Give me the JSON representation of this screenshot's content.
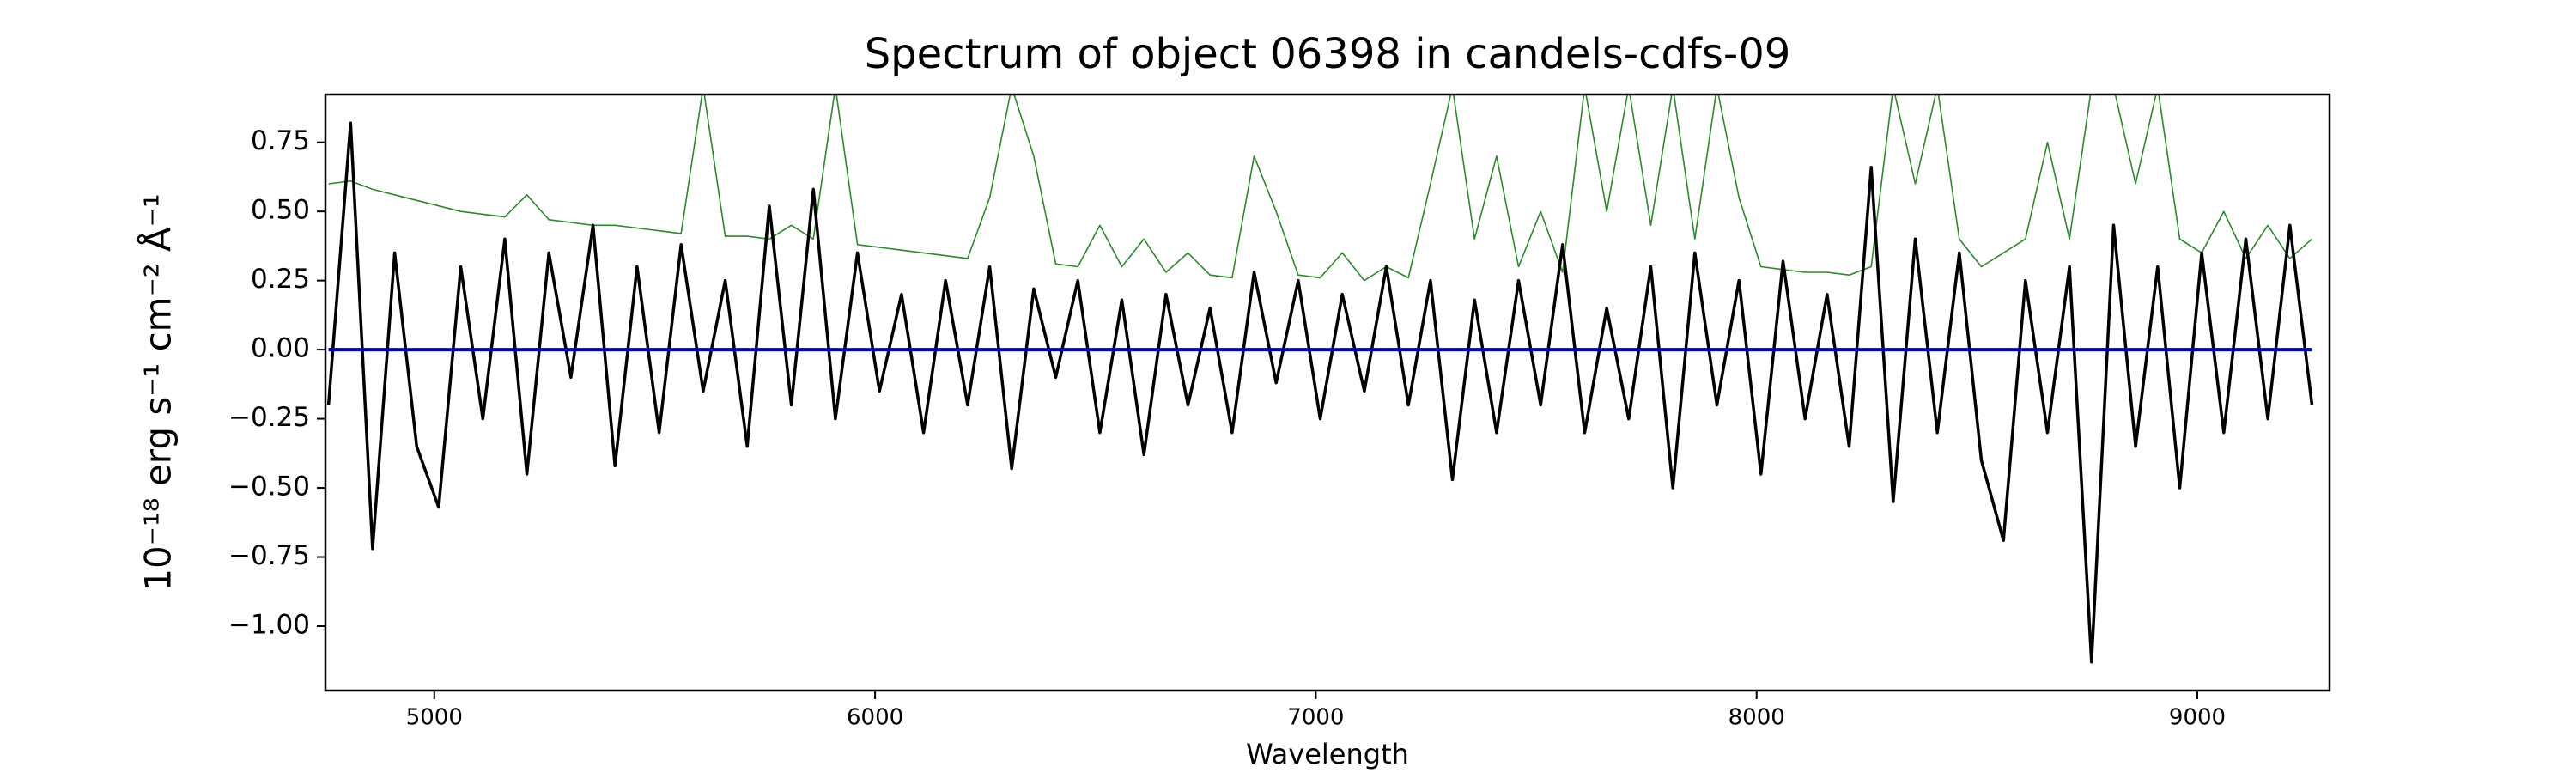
{
  "chart_data": {
    "type": "line",
    "title": "Spectrum of object 06398 in candels-cdfs-09",
    "xlabel": "Wavelength",
    "ylabel": "10⁻¹⁸ erg s⁻¹ cm⁻² Å⁻¹",
    "x": [
      4760,
      4810,
      4860,
      4910,
      4960,
      5010,
      5060,
      5110,
      5160,
      5210,
      5260,
      5310,
      5360,
      5410,
      5460,
      5510,
      5560,
      5610,
      5660,
      5710,
      5760,
      5810,
      5860,
      5910,
      5960,
      6010,
      6060,
      6110,
      6160,
      6210,
      6260,
      6310,
      6360,
      6410,
      6460,
      6510,
      6560,
      6610,
      6660,
      6710,
      6760,
      6810,
      6860,
      6910,
      6960,
      7010,
      7060,
      7110,
      7160,
      7210,
      7260,
      7310,
      7360,
      7410,
      7460,
      7510,
      7560,
      7610,
      7660,
      7710,
      7760,
      7810,
      7860,
      7910,
      7960,
      8010,
      8060,
      8110,
      8160,
      8210,
      8260,
      8310,
      8360,
      8410,
      8460,
      8510,
      8560,
      8610,
      8660,
      8710,
      8760,
      8810,
      8860,
      8910,
      8960,
      9010,
      9060,
      9110,
      9160,
      9210,
      9260
    ],
    "series": [
      {
        "color": "#2a8a2a",
        "width": 1.6,
        "values": [
          0.6,
          0.61,
          0.58,
          0.56,
          0.54,
          0.52,
          0.5,
          0.49,
          0.48,
          0.56,
          0.47,
          0.46,
          0.45,
          0.45,
          0.44,
          0.43,
          0.42,
          0.95,
          0.41,
          0.41,
          0.4,
          0.45,
          0.4,
          0.95,
          0.38,
          0.37,
          0.36,
          0.35,
          0.34,
          0.33,
          0.55,
          0.95,
          0.7,
          0.31,
          0.3,
          0.45,
          0.3,
          0.4,
          0.28,
          0.35,
          0.27,
          0.26,
          0.7,
          0.5,
          0.27,
          0.26,
          0.35,
          0.25,
          0.3,
          0.26,
          0.6,
          0.95,
          0.4,
          0.7,
          0.3,
          0.5,
          0.28,
          0.95,
          0.5,
          0.95,
          0.45,
          0.95,
          0.4,
          0.95,
          0.55,
          0.3,
          0.29,
          0.28,
          0.28,
          0.27,
          0.3,
          0.95,
          0.6,
          0.95,
          0.4,
          0.3,
          0.35,
          0.4,
          0.75,
          0.4,
          0.95,
          0.95,
          0.6,
          0.95,
          0.4,
          0.35,
          0.5,
          0.33,
          0.45,
          0.33,
          0.4
        ]
      },
      {
        "color": "#000000",
        "width": 3.5,
        "values": [
          -0.2,
          0.82,
          -0.72,
          0.35,
          -0.35,
          -0.57,
          0.3,
          -0.25,
          0.4,
          -0.45,
          0.35,
          -0.1,
          0.45,
          -0.42,
          0.3,
          -0.3,
          0.38,
          -0.15,
          0.25,
          -0.35,
          0.52,
          -0.2,
          0.58,
          -0.25,
          0.35,
          -0.15,
          0.2,
          -0.3,
          0.25,
          -0.2,
          0.3,
          -0.43,
          0.22,
          -0.1,
          0.25,
          -0.3,
          0.18,
          -0.38,
          0.2,
          -0.2,
          0.15,
          -0.3,
          0.28,
          -0.12,
          0.25,
          -0.25,
          0.2,
          -0.15,
          0.3,
          -0.2,
          0.25,
          -0.47,
          0.18,
          -0.3,
          0.25,
          -0.2,
          0.38,
          -0.3,
          0.15,
          -0.25,
          0.3,
          -0.5,
          0.35,
          -0.2,
          0.25,
          -0.45,
          0.32,
          -0.25,
          0.2,
          -0.35,
          0.66,
          -0.55,
          0.4,
          -0.3,
          0.35,
          -0.4,
          -0.69,
          0.25,
          -0.3,
          0.3,
          -1.13,
          0.45,
          -0.35,
          0.3,
          -0.5,
          0.35,
          -0.3,
          0.4,
          -0.25,
          0.45,
          -0.2
        ]
      },
      {
        "color": "#0000cc",
        "width": 4,
        "values": [
          0,
          0,
          0,
          0,
          0,
          0,
          0,
          0,
          0,
          0,
          0,
          0,
          0,
          0,
          0,
          0,
          0,
          0,
          0,
          0,
          0,
          0,
          0,
          0,
          0,
          0,
          0,
          0,
          0,
          0,
          0,
          0,
          0,
          0,
          0,
          0,
          0,
          0,
          0,
          0,
          0,
          0,
          0,
          0,
          0,
          0,
          0,
          0,
          0,
          0,
          0,
          0,
          0,
          0,
          0,
          0,
          0,
          0,
          0,
          0,
          0,
          0,
          0,
          0,
          0,
          0,
          0,
          0,
          0,
          0,
          0,
          0,
          0,
          0,
          0,
          0,
          0,
          0,
          0,
          0,
          0,
          0,
          0,
          0,
          0,
          0,
          0,
          0,
          0,
          0,
          0
        ]
      }
    ],
    "xlim": [
      4753,
      9300
    ],
    "xticks": [
      5000,
      6000,
      7000,
      8000,
      9000
    ],
    "ylim": [
      -1.233,
      0.923
    ],
    "yticks": [
      {
        "value": -1.0,
        "label": "−1.00"
      },
      {
        "value": -0.75,
        "label": "−0.75"
      },
      {
        "value": -0.5,
        "label": "−0.50"
      },
      {
        "value": -0.25,
        "label": "−0.25"
      },
      {
        "value": 0,
        "label": "0.00"
      },
      {
        "value": 0.25,
        "label": "0.25"
      },
      {
        "value": 0.5,
        "label": "0.50"
      },
      {
        "value": 0.75,
        "label": "0.75"
      }
    ]
  }
}
